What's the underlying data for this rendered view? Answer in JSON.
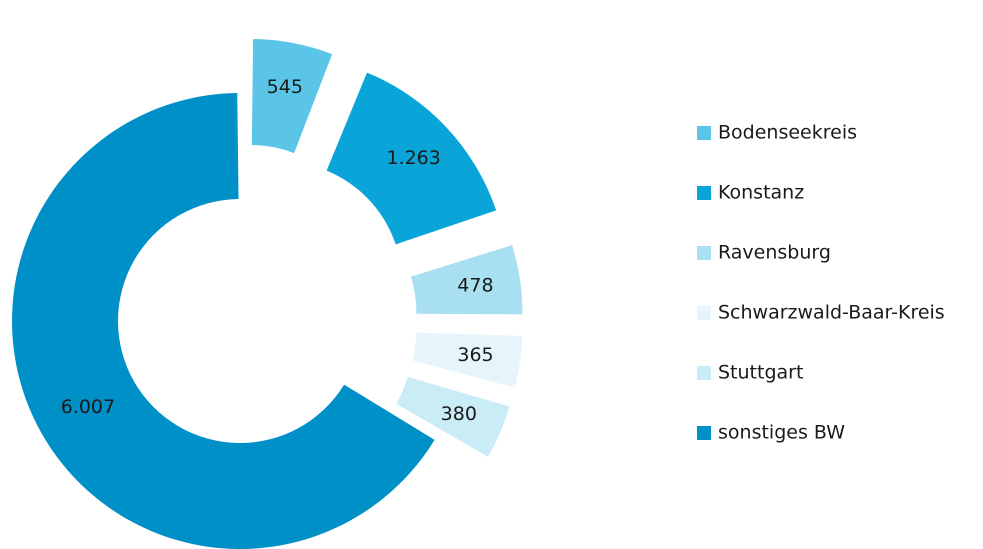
{
  "chart_data": {
    "type": "donut",
    "categories": [
      "Bodenseekreis",
      "Konstanz",
      "Ravensburg",
      "Schwarzwald-Baar-Kreis",
      "Stuttgart",
      "sonstiges BW"
    ],
    "values": [
      545,
      1263,
      478,
      365,
      380,
      6007
    ],
    "value_labels": [
      "545",
      "1.263",
      "478",
      "365",
      "380",
      "6.007"
    ],
    "colors": [
      "#5bc5e8",
      "#0aa5d8",
      "#a8e0f2",
      "#e6f5fb",
      "#c9ecf7",
      "#0090c8"
    ],
    "legend": "right"
  }
}
